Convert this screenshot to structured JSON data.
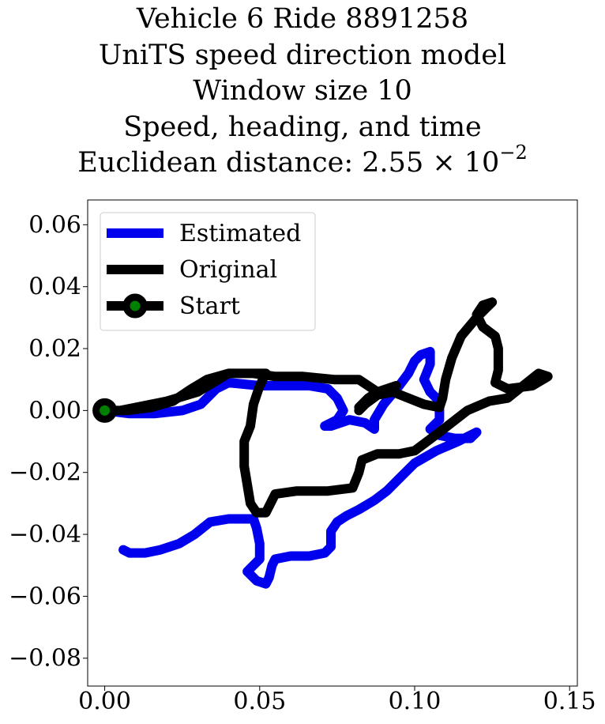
{
  "chart_data": {
    "type": "line",
    "title_lines": [
      "Vehicle 6 Ride 8891258",
      "UniTS speed direction model",
      "Window size 10",
      "Speed, heading, and time"
    ],
    "title_metric_prefix": "Euclidean distance: 2.55 × 10",
    "title_metric_exponent": "−2",
    "xlim": [
      -0.0055,
      0.1525
    ],
    "ylim": [
      -0.089,
      0.068
    ],
    "xticks": [
      0.0,
      0.05,
      0.1,
      0.15
    ],
    "xtick_labels": [
      "0.00",
      "0.05",
      "0.10",
      "0.15"
    ],
    "yticks": [
      0.06,
      0.04,
      0.02,
      0.0,
      -0.02,
      -0.04,
      -0.06,
      -0.08
    ],
    "ytick_labels": [
      "0.06",
      "0.04",
      "0.02",
      "0.00",
      "−0.02",
      "−0.04",
      "−0.06",
      "−0.08"
    ],
    "legend": {
      "position": "upper left",
      "entries": [
        "Estimated",
        "Original",
        "Start"
      ]
    },
    "grid": false,
    "series": [
      {
        "name": "Estimated",
        "color": "#0000ee",
        "points": [
          [
            0.0,
            0.0
          ],
          [
            0.008,
            -0.001
          ],
          [
            0.016,
            -0.001
          ],
          [
            0.025,
            0.0
          ],
          [
            0.031,
            0.002
          ],
          [
            0.036,
            0.007
          ],
          [
            0.04,
            0.009
          ],
          [
            0.05,
            0.008
          ],
          [
            0.058,
            0.008
          ],
          [
            0.066,
            0.008
          ],
          [
            0.072,
            0.007
          ],
          [
            0.075,
            0.004
          ],
          [
            0.077,
            0.0
          ],
          [
            0.075,
            -0.003
          ],
          [
            0.071,
            -0.005
          ],
          [
            0.073,
            -0.005
          ],
          [
            0.079,
            -0.003
          ],
          [
            0.084,
            -0.004
          ],
          [
            0.087,
            -0.006
          ],
          [
            0.087,
            -0.003
          ],
          [
            0.09,
            0.002
          ],
          [
            0.095,
            0.008
          ],
          [
            0.098,
            0.012
          ],
          [
            0.1,
            0.016
          ],
          [
            0.102,
            0.018
          ],
          [
            0.105,
            0.019
          ],
          [
            0.105,
            0.015
          ],
          [
            0.103,
            0.01
          ],
          [
            0.105,
            0.006
          ],
          [
            0.108,
            0.003
          ],
          [
            0.108,
            0.0
          ],
          [
            0.108,
            -0.003
          ],
          [
            0.105,
            -0.006
          ],
          [
            0.108,
            -0.008
          ],
          [
            0.113,
            -0.009
          ],
          [
            0.118,
            -0.009
          ],
          [
            0.12,
            -0.007
          ],
          [
            0.114,
            -0.01
          ],
          [
            0.107,
            -0.013
          ],
          [
            0.1,
            -0.017
          ],
          [
            0.095,
            -0.022
          ],
          [
            0.091,
            -0.026
          ],
          [
            0.087,
            -0.029
          ],
          [
            0.082,
            -0.032
          ],
          [
            0.078,
            -0.034
          ],
          [
            0.075,
            -0.036
          ],
          [
            0.073,
            -0.039
          ],
          [
            0.073,
            -0.044
          ],
          [
            0.071,
            -0.046
          ],
          [
            0.066,
            -0.047
          ],
          [
            0.06,
            -0.047
          ],
          [
            0.055,
            -0.048
          ],
          [
            0.054,
            -0.05
          ],
          [
            0.053,
            -0.054
          ],
          [
            0.052,
            -0.056
          ],
          [
            0.049,
            -0.055
          ],
          [
            0.046,
            -0.052
          ],
          [
            0.048,
            -0.05
          ],
          [
            0.05,
            -0.048
          ],
          [
            0.05,
            -0.043
          ],
          [
            0.049,
            -0.038
          ],
          [
            0.048,
            -0.035
          ],
          [
            0.044,
            -0.035
          ],
          [
            0.04,
            -0.035
          ],
          [
            0.034,
            -0.036
          ],
          [
            0.029,
            -0.04
          ],
          [
            0.024,
            -0.043
          ],
          [
            0.018,
            -0.045
          ],
          [
            0.013,
            -0.046
          ],
          [
            0.008,
            -0.046
          ],
          [
            0.006,
            -0.045
          ]
        ]
      },
      {
        "name": "Original",
        "color": "#000000",
        "points": [
          [
            0.0,
            0.0
          ],
          [
            0.005,
            0.0
          ],
          [
            0.01,
            0.001
          ],
          [
            0.02,
            0.003
          ],
          [
            0.03,
            0.006
          ],
          [
            0.035,
            0.009
          ],
          [
            0.04,
            0.012
          ],
          [
            0.047,
            0.012
          ],
          [
            0.052,
            0.012
          ],
          [
            0.05,
            0.008
          ],
          [
            0.048,
            0.002
          ],
          [
            0.047,
            -0.005
          ],
          [
            0.045,
            -0.01
          ],
          [
            0.045,
            -0.018
          ],
          [
            0.046,
            -0.024
          ],
          [
            0.047,
            -0.03
          ],
          [
            0.049,
            -0.033
          ],
          [
            0.052,
            -0.033
          ],
          [
            0.055,
            -0.027
          ],
          [
            0.062,
            -0.026
          ],
          [
            0.072,
            -0.026
          ],
          [
            0.08,
            -0.025
          ],
          [
            0.082,
            -0.02
          ],
          [
            0.083,
            -0.016
          ],
          [
            0.088,
            -0.014
          ],
          [
            0.095,
            -0.014
          ],
          [
            0.1,
            -0.013
          ],
          [
            0.108,
            -0.007
          ],
          [
            0.117,
            0.0
          ],
          [
            0.124,
            0.003
          ],
          [
            0.13,
            0.004
          ],
          [
            0.135,
            0.008
          ],
          [
            0.14,
            0.012
          ],
          [
            0.143,
            0.011
          ],
          [
            0.138,
            0.008
          ],
          [
            0.13,
            0.007
          ],
          [
            0.126,
            0.009
          ],
          [
            0.127,
            0.013
          ],
          [
            0.127,
            0.02
          ],
          [
            0.126,
            0.024
          ],
          [
            0.122,
            0.027
          ],
          [
            0.12,
            0.031
          ],
          [
            0.122,
            0.034
          ],
          [
            0.125,
            0.035
          ],
          [
            0.123,
            0.033
          ],
          [
            0.12,
            0.03
          ],
          [
            0.115,
            0.024
          ],
          [
            0.112,
            0.017
          ],
          [
            0.11,
            0.01
          ],
          [
            0.109,
            0.004
          ],
          [
            0.108,
            0.001
          ],
          [
            0.103,
            0.002
          ],
          [
            0.098,
            0.004
          ],
          [
            0.093,
            0.006
          ],
          [
            0.088,
            0.005
          ],
          [
            0.084,
            0.002
          ],
          [
            0.082,
            0.0
          ],
          [
            0.087,
            0.005
          ],
          [
            0.094,
            0.008
          ],
          [
            0.088,
            0.006
          ],
          [
            0.082,
            0.001
          ],
          [
            0.085,
            0.004
          ],
          [
            0.088,
            0.006
          ],
          [
            0.082,
            0.01
          ],
          [
            0.074,
            0.01
          ],
          [
            0.064,
            0.011
          ],
          [
            0.055,
            0.011
          ],
          [
            0.048,
            0.012
          ],
          [
            0.04,
            0.012
          ],
          [
            0.033,
            0.01
          ],
          [
            0.028,
            0.007
          ],
          [
            0.022,
            0.003
          ],
          [
            0.015,
            0.001
          ],
          [
            0.007,
            0.0
          ],
          [
            0.0,
            0.0
          ]
        ]
      }
    ],
    "start_marker": {
      "label": "Start",
      "x": 0.0,
      "y": 0.0,
      "face_color": "#008000",
      "edge_color": "#000000"
    }
  }
}
